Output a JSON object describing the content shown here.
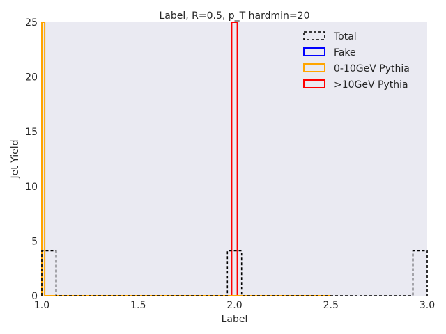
{
  "chart_data": {
    "type": "histogram",
    "title": "Label, R=0.5, p_T hardmin=20",
    "xlabel": "Label",
    "ylabel": "Jet Yield",
    "xlim": [
      1.0,
      3.0
    ],
    "ylim": [
      0,
      25
    ],
    "xticks": [
      "1.0",
      "1.5",
      "2.0",
      "2.5",
      "3.0"
    ],
    "yticks": [
      "0",
      "5",
      "10",
      "15",
      "20",
      "25"
    ],
    "grid": false,
    "background": "#eaeaf2",
    "legend_position": "top-right",
    "series": [
      {
        "name": "Total",
        "color": "#000000",
        "style": "dashed",
        "bin_edges": [
          1.0,
          1.074,
          1.963,
          2.037,
          2.926,
          3.0
        ],
        "counts": [
          4.1,
          0,
          4.1,
          0,
          4.1
        ]
      },
      {
        "name": "Fake",
        "color": "#0000ff",
        "style": "solid",
        "bin_edges": [],
        "counts": []
      },
      {
        "name": "0-10GeV Pythia",
        "color": "#ffa500",
        "style": "solid",
        "bin_edges": [
          1.0,
          1.015,
          2.5
        ],
        "counts": [
          25,
          0
        ]
      },
      {
        "name": ">10GeV Pythia",
        "color": "#ff0000",
        "style": "solid",
        "bin_edges": [
          1.985,
          2.015,
          2.5
        ],
        "counts": [
          25,
          0
        ]
      }
    ]
  }
}
